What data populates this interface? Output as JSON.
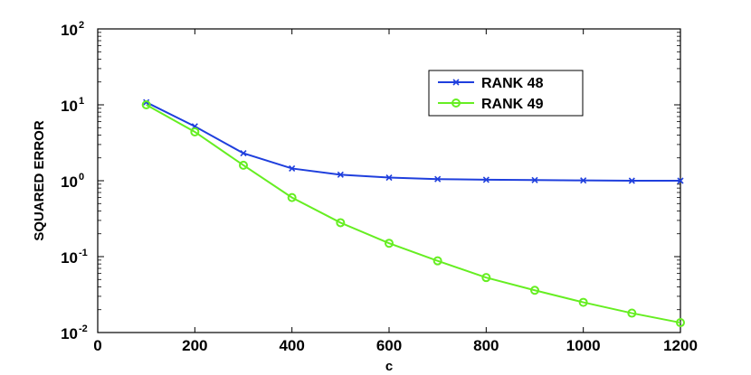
{
  "chart_data": {
    "type": "line",
    "title": "",
    "xlabel": "c",
    "ylabel": "SQUARED ERROR",
    "xlim": [
      0,
      1200
    ],
    "ylim_exponent": [
      -2,
      2
    ],
    "yscale": "log",
    "grid": false,
    "legend_position": "top-right",
    "x_ticks": [
      "0",
      "200",
      "400",
      "600",
      "800",
      "1000",
      "1200"
    ],
    "y_ticks": [
      {
        "base": "10",
        "exp": "-2"
      },
      {
        "base": "10",
        "exp": "-1"
      },
      {
        "base": "10",
        "exp": "0"
      },
      {
        "base": "10",
        "exp": "1"
      },
      {
        "base": "10",
        "exp": "2"
      }
    ],
    "x": [
      100,
      200,
      300,
      400,
      500,
      600,
      700,
      800,
      900,
      1000,
      1100,
      1200
    ],
    "series": [
      {
        "name": "RANK 48",
        "color": "#1f3fdd",
        "marker": "x",
        "values": [
          10.8,
          5.2,
          2.3,
          1.45,
          1.2,
          1.1,
          1.05,
          1.03,
          1.02,
          1.01,
          1.0,
          1.0
        ]
      },
      {
        "name": "RANK 49",
        "color": "#66ee22",
        "marker": "o",
        "values": [
          10.0,
          4.4,
          1.6,
          0.6,
          0.28,
          0.15,
          0.088,
          0.053,
          0.036,
          0.025,
          0.018,
          0.0135
        ]
      }
    ]
  }
}
